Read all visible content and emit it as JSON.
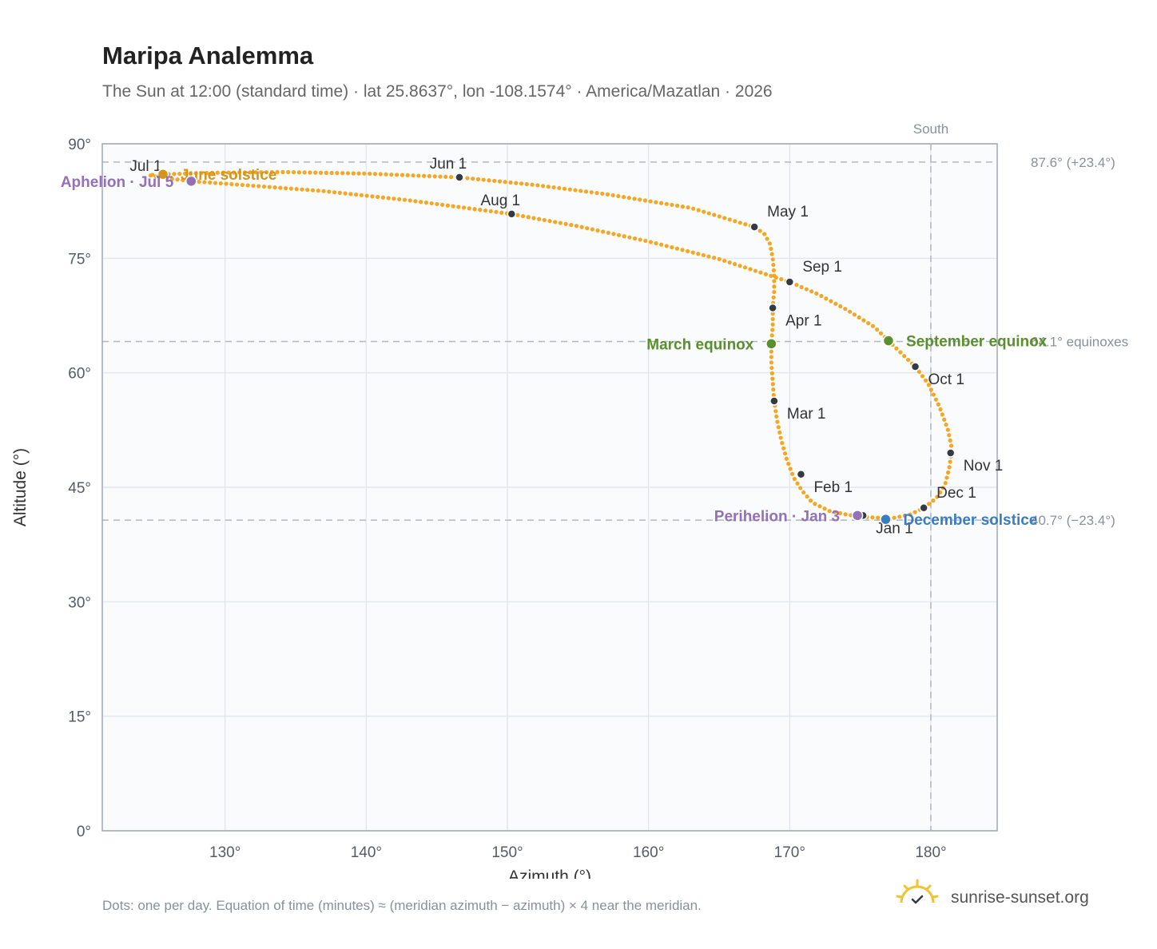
{
  "chart_data": {
    "type": "scatter",
    "title": "Maripa Analemma",
    "subtitle": "The Sun at 12:00 (standard time) · lat 25.8637°, lon -108.1574° · America/Mazatlan · 2026",
    "xlabel": "Azimuth (°)",
    "ylabel": "Altitude (°)",
    "xlim": [
      121.3,
      184.7
    ],
    "ylim": [
      0,
      90
    ],
    "grid": true,
    "x_ticks": [
      130,
      140,
      150,
      160,
      170,
      180
    ],
    "x_tick_labels": [
      "130°",
      "140°",
      "150°",
      "160°",
      "170°",
      "180°"
    ],
    "y_ticks": [
      0,
      15,
      30,
      45,
      60,
      75,
      90
    ],
    "y_tick_labels": [
      "0°",
      "15°",
      "30°",
      "45°",
      "60°",
      "75°",
      "90°"
    ],
    "series": [
      {
        "color": "#f5a623",
        "points": [
          [
            177.4,
            41.0
          ],
          [
            176.4,
            41.0
          ],
          [
            175.3,
            41.1
          ],
          [
            174.1,
            41.4
          ],
          [
            172.8,
            41.9
          ],
          [
            171.6,
            43.0
          ],
          [
            170.9,
            44.5
          ],
          [
            170.3,
            46.2
          ],
          [
            169.8,
            48.6
          ],
          [
            169.4,
            51.2
          ],
          [
            169.1,
            53.8
          ],
          [
            168.9,
            56.3
          ],
          [
            168.8,
            58.8
          ],
          [
            168.7,
            61.3
          ],
          [
            168.7,
            63.8
          ],
          [
            168.8,
            66.2
          ],
          [
            168.8,
            68.6
          ],
          [
            168.9,
            70.7
          ],
          [
            168.9,
            72.9
          ],
          [
            168.8,
            75.0
          ],
          [
            168.6,
            76.9
          ],
          [
            168.2,
            78.2
          ],
          [
            167.5,
            79.1
          ],
          [
            163.0,
            81.6
          ],
          [
            157.0,
            83.4
          ],
          [
            152.0,
            84.6
          ],
          [
            146.6,
            85.6
          ],
          [
            140.0,
            86.1
          ],
          [
            134.0,
            86.3
          ],
          [
            129.0,
            86.2
          ],
          [
            125.6,
            86.0
          ],
          [
            124.6,
            85.9
          ],
          [
            125.8,
            85.5
          ],
          [
            127.6,
            85.1
          ],
          [
            132.0,
            84.5
          ],
          [
            137.0,
            83.8
          ],
          [
            143.0,
            82.6
          ],
          [
            150.3,
            80.8
          ],
          [
            155.0,
            79.2
          ],
          [
            160.0,
            77.2
          ],
          [
            165.0,
            74.9
          ],
          [
            170.0,
            71.9
          ],
          [
            172.0,
            70.3
          ],
          [
            174.0,
            68.3
          ],
          [
            176.0,
            66.0
          ],
          [
            177.0,
            64.2
          ],
          [
            178.0,
            62.4
          ],
          [
            178.9,
            60.8
          ],
          [
            179.8,
            58.6
          ],
          [
            180.6,
            55.6
          ],
          [
            181.2,
            52.6
          ],
          [
            181.5,
            50.0
          ],
          [
            181.3,
            47.5
          ],
          [
            181.0,
            45.3
          ],
          [
            180.4,
            43.6
          ],
          [
            179.5,
            42.3
          ],
          [
            178.5,
            41.4
          ],
          [
            177.4,
            41.0
          ]
        ]
      }
    ],
    "month_markers": [
      {
        "label": "Jan 1",
        "x": 175.2,
        "y": 41.3
      },
      {
        "label": "Feb 1",
        "x": 170.8,
        "y": 46.7
      },
      {
        "label": "Mar 1",
        "x": 168.9,
        "y": 56.3
      },
      {
        "label": "Apr 1",
        "x": 168.8,
        "y": 68.5
      },
      {
        "label": "May 1",
        "x": 167.5,
        "y": 79.1
      },
      {
        "label": "Jun 1",
        "x": 146.6,
        "y": 85.6
      },
      {
        "label": "Jul 1",
        "x": 125.4,
        "y": 85.8
      },
      {
        "label": "Aug 1",
        "x": 150.3,
        "y": 80.8
      },
      {
        "label": "Sep 1",
        "x": 170.0,
        "y": 71.9
      },
      {
        "label": "Oct 1",
        "x": 178.9,
        "y": 60.8
      },
      {
        "label": "Nov 1",
        "x": 181.4,
        "y": 49.5
      },
      {
        "label": "Dec 1",
        "x": 179.5,
        "y": 42.3
      }
    ],
    "events": [
      {
        "label": "June solstice",
        "x": 125.6,
        "y": 86.0,
        "color": "#d4951a"
      },
      {
        "label": "Aphelion · Jul 5",
        "x": 127.6,
        "y": 85.1,
        "color": "#9370b8"
      },
      {
        "label": "March equinox",
        "x": 168.7,
        "y": 63.8,
        "color": "#5a8f2e"
      },
      {
        "label": "September equinox",
        "x": 177.0,
        "y": 64.2,
        "color": "#5a8f2e"
      },
      {
        "label": "Perihelion · Jan 3",
        "x": 174.8,
        "y": 41.3,
        "color": "#9370b8"
      },
      {
        "label": "December solstice",
        "x": 176.8,
        "y": 40.8,
        "color": "#3a7cc0"
      }
    ],
    "reference_lines": [
      {
        "orientation": "horizontal",
        "value": 87.6,
        "label": "87.6° (+23.4°)"
      },
      {
        "orientation": "horizontal",
        "value": 64.1,
        "label": "64.1° equinoxes"
      },
      {
        "orientation": "horizontal",
        "value": 40.7,
        "label": "40.7° (−23.4°)"
      },
      {
        "orientation": "vertical",
        "value": 180,
        "label": "South"
      }
    ]
  },
  "footer": {
    "note": "Dots: one per day. Equation of time (minutes) ≈ (meridian azimuth − azimuth) × 4 near the meridian.",
    "brand": "sunrise-sunset.org"
  },
  "colors": {
    "curve": "#f5a623",
    "month_dot": "#333a44",
    "plot_bg": "#f9fbfd",
    "grid": "#e3e8ee",
    "axis": "#a0a8b4",
    "ref_line": "#b0b8c2"
  }
}
